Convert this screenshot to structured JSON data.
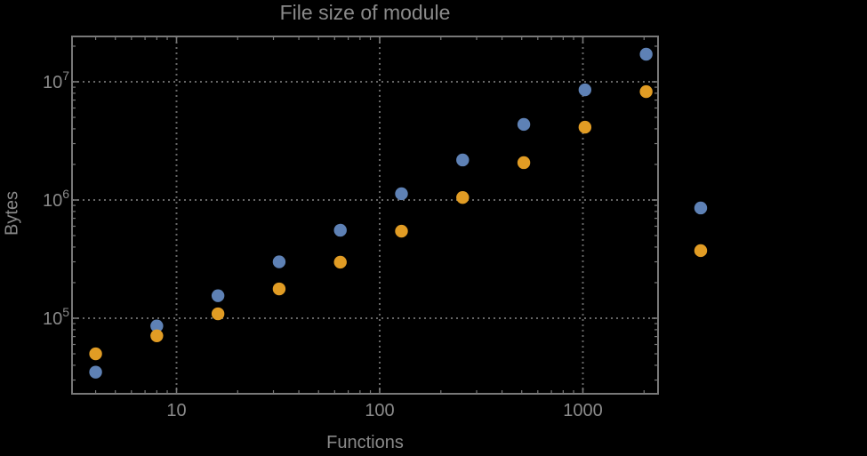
{
  "colors": {
    "background": "#000000",
    "frame": "#787878",
    "grid": "#666666",
    "text": "#8a8a8a",
    "series_blue": "#5E81B5",
    "series_orange": "#E19C24"
  },
  "chart_data": {
    "type": "scatter",
    "title": "File size of module",
    "xlabel": "Functions",
    "ylabel": "Bytes",
    "x_scale": "log",
    "y_scale": "log",
    "x_range": [
      3.1,
      2340
    ],
    "y_range": [
      23000,
      24600000
    ],
    "grid": "dotted gray major gridlines at powers of 10, framed plot with inward minor ticks",
    "legend": "none",
    "x": [
      4,
      8,
      16,
      32,
      64,
      128,
      256,
      512,
      1024,
      2048,
      3800
    ],
    "series": [
      {
        "name": "series-blue",
        "color": "#5E81B5",
        "values": [
          35000,
          86000,
          155000,
          300000,
          555000,
          1130000,
          2180000,
          4360000,
          8550000,
          17100000,
          856000
        ]
      },
      {
        "name": "series-orange",
        "color": "#E19C24",
        "values": [
          50000,
          71000,
          109000,
          177000,
          298000,
          545000,
          1050000,
          2070000,
          4130000,
          8260000,
          373000
        ]
      }
    ],
    "x_ticks": [
      {
        "value": 10,
        "label": "10"
      },
      {
        "value": 100,
        "label": "100"
      },
      {
        "value": 1000,
        "label": "1000"
      }
    ],
    "y_ticks": [
      {
        "value": 100000,
        "mantissa": "10",
        "exponent": "5"
      },
      {
        "value": 1000000,
        "mantissa": "10",
        "exponent": "6"
      },
      {
        "value": 10000000,
        "mantissa": "10",
        "exponent": "7"
      }
    ]
  }
}
